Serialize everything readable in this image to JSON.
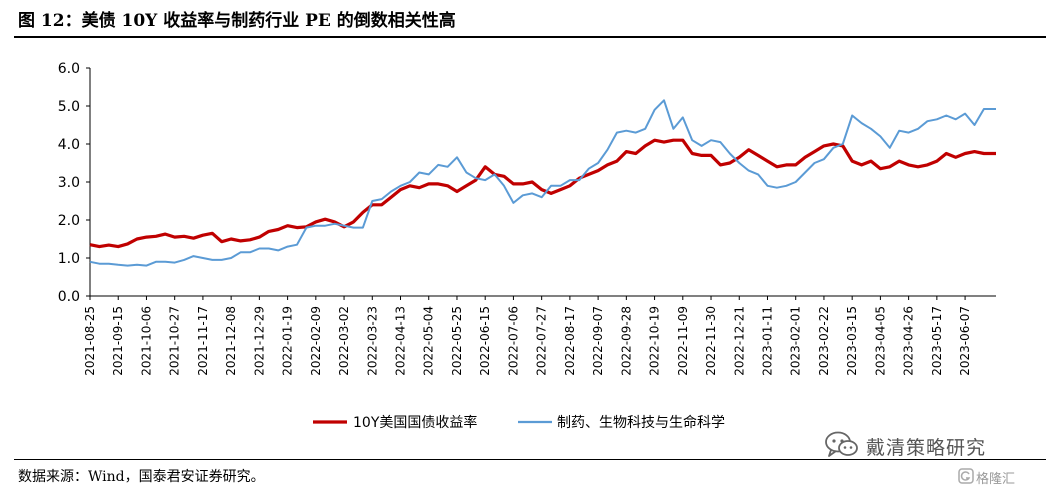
{
  "header": {
    "title": "图 12：美债 10Y 收益率与制药行业 PE 的倒数相关性高"
  },
  "footer": {
    "source": "数据来源：Wind，国泰君安证券研究。",
    "watermark": "戴清策略研究",
    "watermark2": "格隆汇"
  },
  "icons": {
    "watermark_icon": "wechat-bubble-icon",
    "watermark2_icon": "gelonghui-logo-icon"
  },
  "colors": {
    "us10y": "#C00000",
    "pharma": "#5B9BD5"
  },
  "chart_data": {
    "type": "line",
    "title": "",
    "xlabel": "",
    "ylabel": "",
    "ylim": [
      0,
      6
    ],
    "yticks": [
      "0.0",
      "1.0",
      "2.0",
      "3.0",
      "4.0",
      "5.0",
      "6.0"
    ],
    "x_start": "2021-08-25",
    "x_end": "2023-06-30",
    "xticks": [
      "2021-08-25",
      "2021-09-15",
      "2021-10-06",
      "2021-10-27",
      "2021-11-17",
      "2021-12-08",
      "2021-12-29",
      "2022-01-19",
      "2022-02-09",
      "2022-03-02",
      "2022-03-23",
      "2022-04-13",
      "2022-05-04",
      "2022-05-25",
      "2022-06-15",
      "2022-07-06",
      "2022-07-27",
      "2022-08-17",
      "2022-09-07",
      "2022-09-28",
      "2022-10-19",
      "2022-11-09",
      "2022-11-30",
      "2022-12-21",
      "2023-01-11",
      "2023-02-01",
      "2023-02-22",
      "2023-03-15",
      "2023-04-05",
      "2023-04-26",
      "2023-05-17",
      "2023-06-07"
    ],
    "grid": false,
    "legend_position": "bottom",
    "series": [
      {
        "name": "10Y美国国债收益率",
        "color": "#C00000",
        "points": [
          [
            "2021-08-25",
            1.35
          ],
          [
            "2021-09-01",
            1.3
          ],
          [
            "2021-09-08",
            1.34
          ],
          [
            "2021-09-15",
            1.3
          ],
          [
            "2021-09-22",
            1.37
          ],
          [
            "2021-09-29",
            1.5
          ],
          [
            "2021-10-06",
            1.55
          ],
          [
            "2021-10-13",
            1.57
          ],
          [
            "2021-10-20",
            1.63
          ],
          [
            "2021-10-27",
            1.55
          ],
          [
            "2021-11-03",
            1.57
          ],
          [
            "2021-11-10",
            1.52
          ],
          [
            "2021-11-17",
            1.6
          ],
          [
            "2021-11-24",
            1.65
          ],
          [
            "2021-12-01",
            1.43
          ],
          [
            "2021-12-08",
            1.5
          ],
          [
            "2021-12-15",
            1.45
          ],
          [
            "2021-12-22",
            1.48
          ],
          [
            "2021-12-29",
            1.55
          ],
          [
            "2022-01-05",
            1.7
          ],
          [
            "2022-01-12",
            1.75
          ],
          [
            "2022-01-19",
            1.85
          ],
          [
            "2022-01-26",
            1.8
          ],
          [
            "2022-02-02",
            1.82
          ],
          [
            "2022-02-09",
            1.95
          ],
          [
            "2022-02-16",
            2.02
          ],
          [
            "2022-02-23",
            1.95
          ],
          [
            "2022-03-02",
            1.82
          ],
          [
            "2022-03-09",
            1.95
          ],
          [
            "2022-03-16",
            2.2
          ],
          [
            "2022-03-23",
            2.4
          ],
          [
            "2022-03-30",
            2.4
          ],
          [
            "2022-04-06",
            2.6
          ],
          [
            "2022-04-13",
            2.8
          ],
          [
            "2022-04-20",
            2.9
          ],
          [
            "2022-04-27",
            2.85
          ],
          [
            "2022-05-04",
            2.95
          ],
          [
            "2022-05-11",
            2.95
          ],
          [
            "2022-05-18",
            2.9
          ],
          [
            "2022-05-25",
            2.75
          ],
          [
            "2022-06-01",
            2.9
          ],
          [
            "2022-06-08",
            3.05
          ],
          [
            "2022-06-15",
            3.4
          ],
          [
            "2022-06-22",
            3.2
          ],
          [
            "2022-06-29",
            3.15
          ],
          [
            "2022-07-06",
            2.95
          ],
          [
            "2022-07-13",
            2.95
          ],
          [
            "2022-07-20",
            3.0
          ],
          [
            "2022-07-27",
            2.8
          ],
          [
            "2022-08-03",
            2.7
          ],
          [
            "2022-08-10",
            2.8
          ],
          [
            "2022-08-17",
            2.9
          ],
          [
            "2022-08-24",
            3.1
          ],
          [
            "2022-08-31",
            3.2
          ],
          [
            "2022-09-07",
            3.3
          ],
          [
            "2022-09-14",
            3.45
          ],
          [
            "2022-09-21",
            3.55
          ],
          [
            "2022-09-28",
            3.8
          ],
          [
            "2022-10-05",
            3.75
          ],
          [
            "2022-10-12",
            3.95
          ],
          [
            "2022-10-19",
            4.1
          ],
          [
            "2022-10-26",
            4.05
          ],
          [
            "2022-11-02",
            4.1
          ],
          [
            "2022-11-09",
            4.1
          ],
          [
            "2022-11-16",
            3.75
          ],
          [
            "2022-11-23",
            3.7
          ],
          [
            "2022-11-30",
            3.7
          ],
          [
            "2022-12-07",
            3.45
          ],
          [
            "2022-12-14",
            3.5
          ],
          [
            "2022-12-21",
            3.65
          ],
          [
            "2022-12-28",
            3.85
          ],
          [
            "2023-01-04",
            3.7
          ],
          [
            "2023-01-11",
            3.55
          ],
          [
            "2023-01-18",
            3.4
          ],
          [
            "2023-01-25",
            3.45
          ],
          [
            "2023-02-01",
            3.45
          ],
          [
            "2023-02-08",
            3.65
          ],
          [
            "2023-02-15",
            3.8
          ],
          [
            "2023-02-22",
            3.95
          ],
          [
            "2023-03-01",
            4.0
          ],
          [
            "2023-03-08",
            3.95
          ],
          [
            "2023-03-15",
            3.55
          ],
          [
            "2023-03-22",
            3.45
          ],
          [
            "2023-03-29",
            3.55
          ],
          [
            "2023-04-05",
            3.35
          ],
          [
            "2023-04-12",
            3.4
          ],
          [
            "2023-04-19",
            3.55
          ],
          [
            "2023-04-26",
            3.45
          ],
          [
            "2023-05-03",
            3.4
          ],
          [
            "2023-05-10",
            3.45
          ],
          [
            "2023-05-17",
            3.55
          ],
          [
            "2023-05-24",
            3.75
          ],
          [
            "2023-05-31",
            3.65
          ],
          [
            "2023-06-07",
            3.75
          ],
          [
            "2023-06-14",
            3.8
          ],
          [
            "2023-06-21",
            3.75
          ],
          [
            "2023-06-30",
            3.75
          ]
        ]
      },
      {
        "name": "制药、生物科技与生命科学",
        "color": "#5B9BD5",
        "points": [
          [
            "2021-08-25",
            0.9
          ],
          [
            "2021-09-01",
            0.85
          ],
          [
            "2021-09-08",
            0.85
          ],
          [
            "2021-09-15",
            0.82
          ],
          [
            "2021-09-22",
            0.8
          ],
          [
            "2021-09-29",
            0.82
          ],
          [
            "2021-10-06",
            0.8
          ],
          [
            "2021-10-13",
            0.9
          ],
          [
            "2021-10-20",
            0.9
          ],
          [
            "2021-10-27",
            0.88
          ],
          [
            "2021-11-03",
            0.95
          ],
          [
            "2021-11-10",
            1.05
          ],
          [
            "2021-11-17",
            1.0
          ],
          [
            "2021-11-24",
            0.95
          ],
          [
            "2021-12-01",
            0.95
          ],
          [
            "2021-12-08",
            1.0
          ],
          [
            "2021-12-15",
            1.15
          ],
          [
            "2021-12-22",
            1.15
          ],
          [
            "2021-12-29",
            1.25
          ],
          [
            "2022-01-05",
            1.25
          ],
          [
            "2022-01-12",
            1.2
          ],
          [
            "2022-01-19",
            1.3
          ],
          [
            "2022-01-26",
            1.35
          ],
          [
            "2022-02-02",
            1.8
          ],
          [
            "2022-02-09",
            1.85
          ],
          [
            "2022-02-16",
            1.85
          ],
          [
            "2022-02-23",
            1.9
          ],
          [
            "2022-03-02",
            1.85
          ],
          [
            "2022-03-09",
            1.8
          ],
          [
            "2022-03-16",
            1.8
          ],
          [
            "2022-03-23",
            2.5
          ],
          [
            "2022-03-30",
            2.55
          ],
          [
            "2022-04-06",
            2.75
          ],
          [
            "2022-04-13",
            2.9
          ],
          [
            "2022-04-20",
            3.0
          ],
          [
            "2022-04-27",
            3.25
          ],
          [
            "2022-05-04",
            3.2
          ],
          [
            "2022-05-11",
            3.45
          ],
          [
            "2022-05-18",
            3.4
          ],
          [
            "2022-05-25",
            3.65
          ],
          [
            "2022-06-01",
            3.25
          ],
          [
            "2022-06-08",
            3.1
          ],
          [
            "2022-06-15",
            3.05
          ],
          [
            "2022-06-22",
            3.2
          ],
          [
            "2022-06-29",
            2.9
          ],
          [
            "2022-07-06",
            2.45
          ],
          [
            "2022-07-13",
            2.65
          ],
          [
            "2022-07-20",
            2.7
          ],
          [
            "2022-07-27",
            2.6
          ],
          [
            "2022-08-03",
            2.9
          ],
          [
            "2022-08-10",
            2.9
          ],
          [
            "2022-08-17",
            3.05
          ],
          [
            "2022-08-24",
            3.05
          ],
          [
            "2022-08-31",
            3.35
          ],
          [
            "2022-09-07",
            3.5
          ],
          [
            "2022-09-14",
            3.85
          ],
          [
            "2022-09-21",
            4.3
          ],
          [
            "2022-09-28",
            4.35
          ],
          [
            "2022-10-05",
            4.3
          ],
          [
            "2022-10-12",
            4.4
          ],
          [
            "2022-10-19",
            4.9
          ],
          [
            "2022-10-26",
            5.15
          ],
          [
            "2022-11-02",
            4.4
          ],
          [
            "2022-11-09",
            4.7
          ],
          [
            "2022-11-16",
            4.1
          ],
          [
            "2022-11-23",
            3.95
          ],
          [
            "2022-11-30",
            4.1
          ],
          [
            "2022-12-07",
            4.05
          ],
          [
            "2022-12-14",
            3.75
          ],
          [
            "2022-12-21",
            3.5
          ],
          [
            "2022-12-28",
            3.3
          ],
          [
            "2023-01-04",
            3.2
          ],
          [
            "2023-01-11",
            2.9
          ],
          [
            "2023-01-18",
            2.85
          ],
          [
            "2023-01-25",
            2.9
          ],
          [
            "2023-02-01",
            3.0
          ],
          [
            "2023-02-08",
            3.25
          ],
          [
            "2023-02-15",
            3.5
          ],
          [
            "2023-02-22",
            3.6
          ],
          [
            "2023-03-01",
            3.9
          ],
          [
            "2023-03-08",
            4.0
          ],
          [
            "2023-03-15",
            4.75
          ],
          [
            "2023-03-22",
            4.55
          ],
          [
            "2023-03-29",
            4.4
          ],
          [
            "2023-04-05",
            4.2
          ],
          [
            "2023-04-12",
            3.9
          ],
          [
            "2023-04-19",
            4.35
          ],
          [
            "2023-04-26",
            4.3
          ],
          [
            "2023-05-03",
            4.4
          ],
          [
            "2023-05-10",
            4.6
          ],
          [
            "2023-05-17",
            4.65
          ],
          [
            "2023-05-24",
            4.75
          ],
          [
            "2023-05-31",
            4.65
          ],
          [
            "2023-06-07",
            4.8
          ],
          [
            "2023-06-14",
            4.5
          ],
          [
            "2023-06-21",
            4.92
          ],
          [
            "2023-06-30",
            4.92
          ]
        ]
      }
    ]
  }
}
